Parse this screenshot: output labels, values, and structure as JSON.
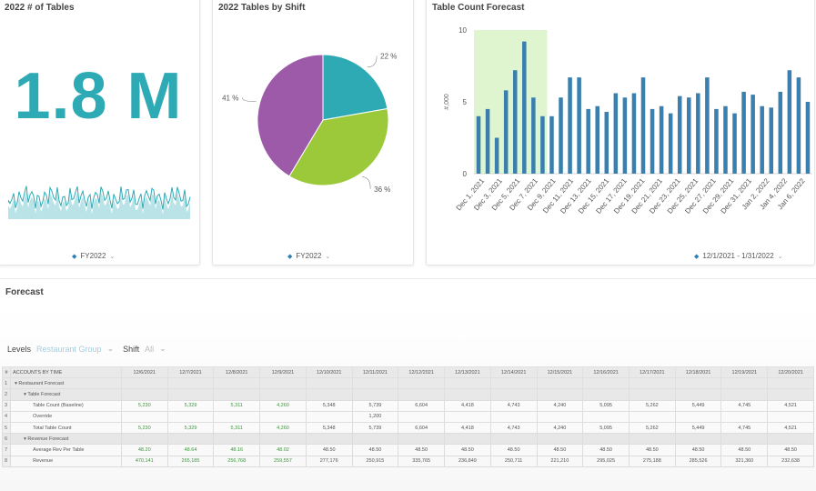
{
  "kpi_card": {
    "title": "2022 # of Tables",
    "value": "1.8 M",
    "filter": "FY2022"
  },
  "pie_card": {
    "title": "2022 Tables by Shift",
    "filter": "FY2022",
    "colors": {
      "teal": "#2eaab5",
      "green": "#9cc93a",
      "purple": "#9d5aa8"
    },
    "slices": [
      {
        "label": "22 %",
        "value": 22,
        "color": "#2eaab5"
      },
      {
        "label": "36 %",
        "value": 36,
        "color": "#9cc93a"
      },
      {
        "label": "41 %",
        "value": 41,
        "color": "#9d5aa8"
      }
    ]
  },
  "bar_card": {
    "title": "Table Count Forecast",
    "filter": "12/1/2021 - 1/31/2022"
  },
  "chart_data": {
    "type": "bar",
    "ylabel": "#,000",
    "ylim": [
      0,
      10
    ],
    "yticks": [
      "0",
      "5",
      "10"
    ],
    "highlight_color": "#dff5cf",
    "bar_color": "#3a7fae",
    "x_tick_labels": [
      "Dec 1, 2021",
      "Dec 3, 2021",
      "Dec 5, 2021",
      "Dec 7, 2021",
      "Dec 9, 2021",
      "Dec 11, 2021",
      "Dec 13, 2021",
      "Dec 15, 2021",
      "Dec 17, 2021",
      "Dec 19, 2021",
      "Dec 21, 2021",
      "Dec 23, 2021",
      "Dec 25, 2021",
      "Dec 27, 2021",
      "Dec 29, 2021",
      "Dec 31, 2021",
      "Jan 2, 2022",
      "Jan 4, 2022",
      "Jan 6, 2022"
    ],
    "values": [
      4.0,
      4.5,
      2.5,
      5.8,
      7.2,
      9.2,
      5.3,
      4.0,
      4.0,
      5.3,
      6.7,
      6.7,
      4.5,
      4.7,
      4.3,
      5.6,
      5.3,
      5.6,
      6.7,
      4.5,
      4.7,
      4.2,
      5.4,
      5.3,
      5.6,
      6.7,
      4.5,
      4.7,
      4.2,
      5.7,
      5.5,
      4.7,
      4.6,
      5.7,
      7.2,
      6.7,
      5.0
    ],
    "highlight_range": [
      0,
      7
    ]
  },
  "forecast": {
    "title": "Forecast",
    "levels_label": "Levels",
    "levels_value": "Restaurant Group",
    "shift_label": "Shift",
    "shift_value": "All",
    "columns": [
      "#",
      "ACCOUNTS BY TIME",
      "12/6/2021",
      "12/7/2021",
      "12/8/2021",
      "12/9/2021",
      "12/10/2021",
      "12/11/2021",
      "12/12/2021",
      "12/13/2021",
      "12/14/2021",
      "12/15/2021",
      "12/16/2021",
      "12/17/2021",
      "12/18/2021",
      "12/19/2021",
      "12/20/2021"
    ],
    "rows": [
      {
        "idx": "1",
        "label": "▾  Restaurant Forecast",
        "indent": 0,
        "cells": [
          "",
          "",
          "",
          "",
          "",
          "",
          "",
          "",
          "",
          "",
          "",
          "",
          "",
          "",
          ""
        ]
      },
      {
        "idx": "2",
        "label": "▾  Table Forecast",
        "indent": 1,
        "cells": [
          "",
          "",
          "",
          "",
          "",
          "",
          "",
          "",
          "",
          "",
          "",
          "",
          "",
          "",
          ""
        ]
      },
      {
        "idx": "3",
        "label": "Table Count (Baseline)",
        "indent": 2,
        "cells": [
          "5,230",
          "5,329",
          "5,311",
          "4,260",
          "5,348",
          "5,739",
          "6,604",
          "4,418",
          "4,743",
          "4,240",
          "5,095",
          "5,262",
          "5,449",
          "4,745",
          "4,521"
        ]
      },
      {
        "idx": "4",
        "label": "Override",
        "indent": 2,
        "cells": [
          "",
          "",
          "",
          "",
          "",
          "1,200",
          "",
          "",
          "",
          "",
          "",
          "",
          "",
          "",
          ""
        ]
      },
      {
        "idx": "5",
        "label": "Total Table Count",
        "indent": 2,
        "cells": [
          "5,230",
          "5,329",
          "5,311",
          "4,260",
          "5,348",
          "5,739",
          "6,604",
          "4,418",
          "4,743",
          "4,240",
          "5,095",
          "5,262",
          "5,449",
          "4,745",
          "4,521"
        ]
      },
      {
        "idx": "6",
        "label": "▾  Revenue Forecast",
        "indent": 1,
        "cells": [
          "",
          "",
          "",
          "",
          "",
          "",
          "",
          "",
          "",
          "",
          "",
          "",
          "",
          "",
          ""
        ]
      },
      {
        "idx": "7",
        "label": "Average Rev Per Table",
        "indent": 2,
        "cells": [
          "48.20",
          "48.64",
          "48.16",
          "48.02",
          "48.50",
          "48.50",
          "48.50",
          "48.50",
          "48.50",
          "48.50",
          "48.50",
          "48.50",
          "48.50",
          "48.50",
          "48.50"
        ]
      },
      {
        "idx": "8",
        "label": "Revenue",
        "indent": 2,
        "cells": [
          "470,141",
          "265,185",
          "256,768",
          "259,557",
          "277,176",
          "250,915",
          "335,765",
          "236,849",
          "250,711",
          "221,210",
          "295,025",
          "275,188",
          "285,526",
          "321,360",
          "232,638"
        ]
      }
    ],
    "green_rows": [
      3,
      5,
      7,
      8
    ],
    "green_cols": 4
  }
}
